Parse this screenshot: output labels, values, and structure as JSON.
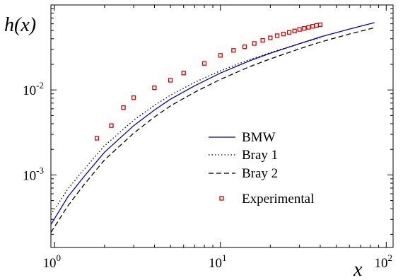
{
  "chart_data": {
    "type": "line",
    "xlabel": "x",
    "ylabel": "h(x)",
    "x_scale": "log",
    "y_scale": "log",
    "xlim": [
      0.95,
      110
    ],
    "ylim": [
      0.00014,
      0.1
    ],
    "grid": false,
    "legend_position": "center-right",
    "x_ticks": [
      {
        "value": 1,
        "base": "10",
        "exp": "0"
      },
      {
        "value": 10,
        "base": "10",
        "exp": "1"
      },
      {
        "value": 100,
        "base": "10",
        "exp": "2"
      }
    ],
    "y_ticks": [
      {
        "value": 0.001,
        "base": "10",
        "exp": "-3"
      },
      {
        "value": 0.01,
        "base": "10",
        "exp": "-2"
      }
    ],
    "series": [
      {
        "name": "BMW",
        "kind": "line",
        "color": "#0000cc",
        "dash": "solid",
        "x": [
          0.95,
          1.2,
          1.5,
          2,
          3,
          4,
          5,
          7,
          10,
          15,
          20,
          30,
          40,
          60,
          85
        ],
        "y": [
          0.00026,
          0.00055,
          0.00095,
          0.00185,
          0.0038,
          0.0058,
          0.0078,
          0.0112,
          0.0158,
          0.022,
          0.027,
          0.035,
          0.042,
          0.052,
          0.062
        ]
      },
      {
        "name": "Bray 1",
        "kind": "line",
        "color": "#000000",
        "dash": "dotted",
        "x": [
          0.95,
          1.2,
          1.5,
          2,
          3,
          4,
          5,
          7,
          10,
          15,
          20,
          30,
          40
        ],
        "y": [
          0.00034,
          0.00068,
          0.00115,
          0.0022,
          0.0044,
          0.0066,
          0.0087,
          0.0123,
          0.0168,
          0.0228,
          0.0275,
          0.035,
          0.041
        ]
      },
      {
        "name": "Bray 2",
        "kind": "line",
        "color": "#000000",
        "dash": "dashed",
        "x": [
          0.95,
          1.2,
          1.5,
          2,
          3,
          4,
          5,
          7,
          10,
          15,
          20,
          30,
          40,
          60,
          85
        ],
        "y": [
          0.00021,
          0.00043,
          0.00076,
          0.0015,
          0.0031,
          0.0048,
          0.0065,
          0.0094,
          0.0133,
          0.0188,
          0.0232,
          0.0305,
          0.0365,
          0.0455,
          0.054
        ]
      },
      {
        "name": "Experimental",
        "kind": "scatter",
        "color": "#dd0000",
        "marker": "square",
        "x": [
          1.8,
          2.2,
          2.6,
          3,
          4,
          5,
          6,
          8,
          10,
          12,
          14,
          16,
          18,
          20,
          22,
          24,
          26,
          28,
          30,
          32,
          34,
          36,
          38,
          40
        ],
        "y": [
          0.0027,
          0.0038,
          0.0062,
          0.0081,
          0.0106,
          0.013,
          0.0158,
          0.0205,
          0.0255,
          0.0292,
          0.0322,
          0.0352,
          0.0383,
          0.041,
          0.0435,
          0.0455,
          0.0475,
          0.0495,
          0.0515,
          0.053,
          0.0545,
          0.056,
          0.0575,
          0.0585
        ]
      }
    ]
  }
}
